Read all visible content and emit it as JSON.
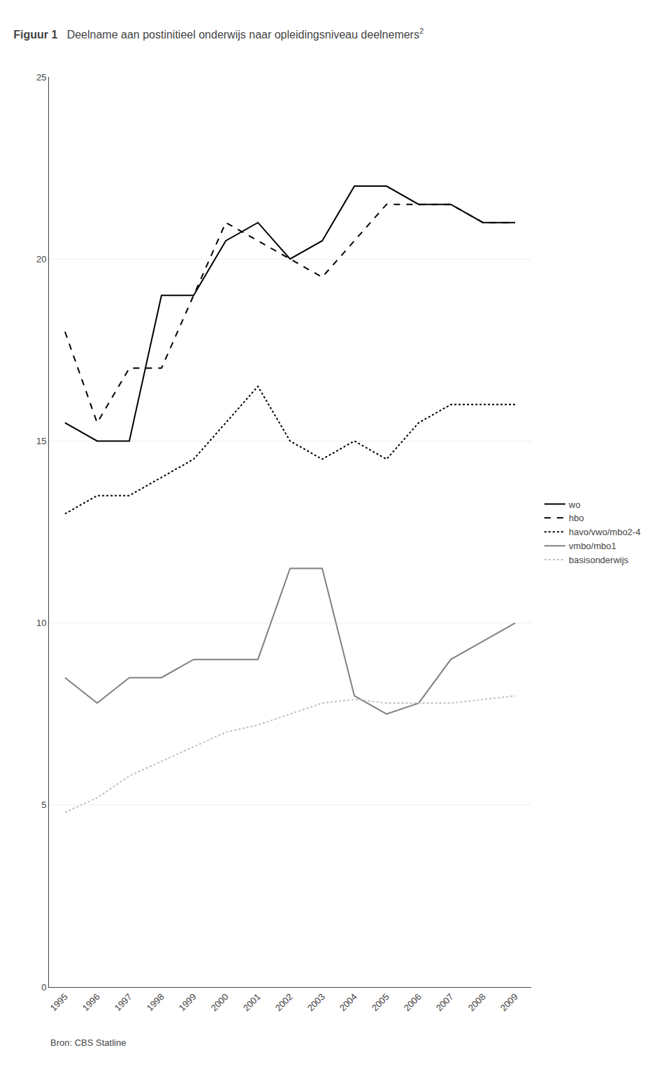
{
  "chart_data": {
    "type": "line",
    "title": "Figuur 1",
    "subtitle": "Deelname aan postinitieel onderwijs naar opleidingsniveau deelnemers",
    "annotations": [
      "2",
      "Bron: CBS Statline"
    ],
    "x": [
      1995,
      1996,
      1997,
      1998,
      1999,
      2000,
      2001,
      2002,
      2003,
      2004,
      2005,
      2006,
      2007,
      2008,
      2009
    ],
    "series": [
      {
        "name": "wo",
        "color": "#000000",
        "line_style": "solid",
        "values": [
          15.5,
          15.0,
          15.0,
          19.0,
          19.0,
          20.5,
          21.0,
          20.0,
          20.5,
          22.0,
          22.0,
          21.5,
          21.5,
          21.0,
          21.0
        ]
      },
      {
        "name": "hbo",
        "color": "#000000",
        "line_style": "dashed",
        "values": [
          18.0,
          15.5,
          17.0,
          17.0,
          19.0,
          21.0,
          20.5,
          20.0,
          19.5,
          20.5,
          21.5,
          21.5,
          21.5,
          21.0,
          21.0
        ]
      },
      {
        "name": "havo/vwo/mbo2-4",
        "color": "#000000",
        "line_style": "dotted",
        "values": [
          13.0,
          13.5,
          13.5,
          14.0,
          14.5,
          15.5,
          16.5,
          15.0,
          14.5,
          15.0,
          14.5,
          15.5,
          16.0,
          16.0,
          16.0
        ]
      },
      {
        "name": "vmbo/mbo1",
        "color": "#808080",
        "line_style": "solid",
        "values": [
          8.5,
          7.8,
          8.5,
          8.5,
          9.0,
          9.0,
          9.0,
          11.5,
          11.5,
          8.0,
          7.5,
          7.8,
          9.0,
          9.5,
          10.0
        ]
      },
      {
        "name": "basisonderwijs",
        "color": "#c0c0c0",
        "line_style": "dotted",
        "values": [
          4.8,
          5.2,
          5.8,
          6.2,
          6.6,
          7.0,
          7.2,
          7.5,
          7.8,
          7.9,
          7.8,
          7.8,
          7.8,
          7.9,
          8.0
        ]
      }
    ],
    "xlim": [
      1994.5,
      2009.5
    ],
    "xticks": [
      1995,
      1996,
      1997,
      1998,
      1999,
      2000,
      2001,
      2002,
      2003,
      2004,
      2005,
      2006,
      2007,
      2008,
      2009
    ],
    "ylim": [
      0,
      25
    ],
    "yticks": [
      0,
      5,
      10,
      15,
      20,
      25
    ],
    "grid": true,
    "legend": "right"
  }
}
